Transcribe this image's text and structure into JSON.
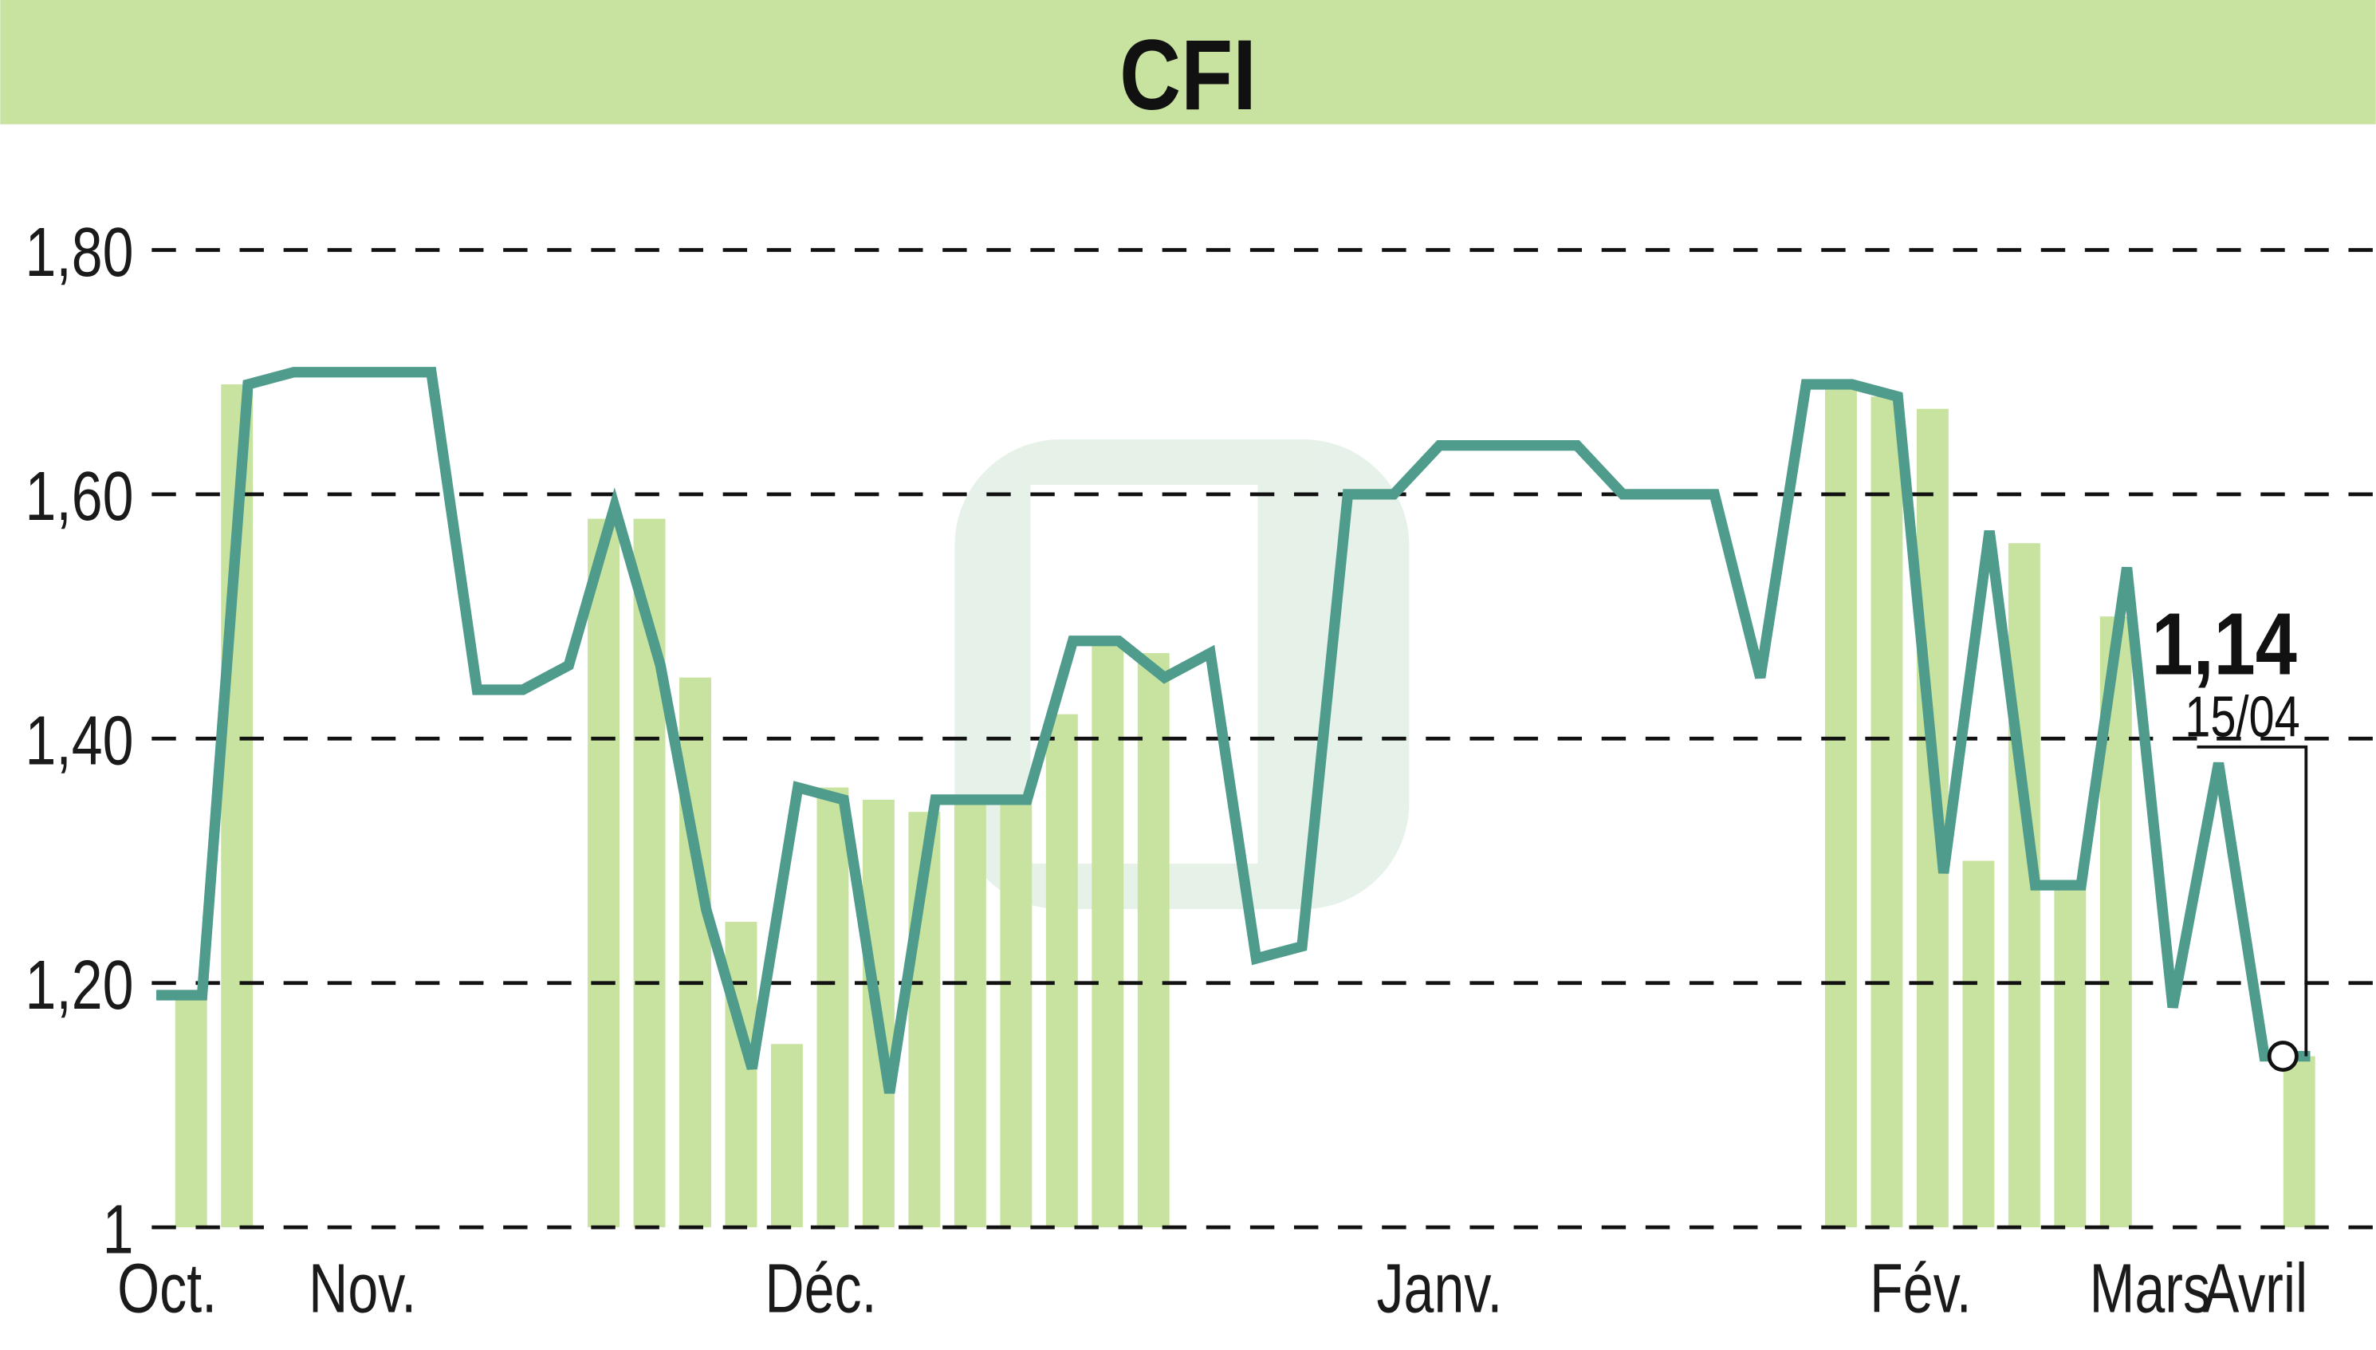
{
  "chart_data": {
    "type": "line",
    "title": "CFI",
    "colors": {
      "header": "#c8e2a0",
      "line": "#4f9c8c",
      "bars": "#c8e2a0",
      "grid": "#111111"
    },
    "ylim": [
      1.0,
      1.8
    ],
    "yticks": [
      {
        "value": 1.0,
        "label": "1"
      },
      {
        "value": 1.2,
        "label": "1,20"
      },
      {
        "value": 1.4,
        "label": "1,40"
      },
      {
        "value": 1.6,
        "label": "1,60"
      },
      {
        "value": 1.8,
        "label": "1,80"
      }
    ],
    "grid": "horizontal dashed",
    "series": [
      {
        "values": [
          1.19,
          1.19,
          1.69,
          1.7,
          1.7,
          1.7,
          1.7,
          1.44,
          1.44,
          1.46,
          1.59,
          1.46,
          1.26,
          1.13,
          1.36,
          1.35,
          1.11,
          1.35,
          1.35,
          1.35,
          1.48,
          1.48,
          1.45,
          1.47,
          1.22,
          1.23,
          1.6,
          1.6,
          1.64,
          1.64,
          1.64,
          1.64,
          1.6,
          1.6,
          1.6,
          1.45,
          1.69,
          1.69,
          1.68,
          1.29,
          1.57,
          1.28,
          1.28,
          1.54,
          1.18,
          1.38,
          1.14,
          1.14
        ]
      }
    ],
    "volume_bars": [
      {
        "index": 0,
        "value": 1.19
      },
      {
        "index": 1,
        "value": 1.69
      },
      {
        "index": 9,
        "value": 1.58
      },
      {
        "index": 10,
        "value": 1.58
      },
      {
        "index": 11,
        "value": 1.45
      },
      {
        "index": 12,
        "value": 1.25
      },
      {
        "index": 13,
        "value": 1.15
      },
      {
        "index": 14,
        "value": 1.36
      },
      {
        "index": 15,
        "value": 1.35
      },
      {
        "index": 16,
        "value": 1.34
      },
      {
        "index": 17,
        "value": 1.35
      },
      {
        "index": 18,
        "value": 1.35
      },
      {
        "index": 19,
        "value": 1.42
      },
      {
        "index": 20,
        "value": 1.48
      },
      {
        "index": 21,
        "value": 1.47
      },
      {
        "index": 36,
        "value": 1.69
      },
      {
        "index": 37,
        "value": 1.68
      },
      {
        "index": 38,
        "value": 1.67
      },
      {
        "index": 39,
        "value": 1.3
      },
      {
        "index": 40,
        "value": 1.56
      },
      {
        "index": 41,
        "value": 1.28
      },
      {
        "index": 42,
        "value": 1.5
      },
      {
        "index": 46,
        "value": 1.14
      }
    ],
    "xticks": [
      {
        "index": 0,
        "label": "Oct."
      },
      {
        "index": 4.5,
        "label": "Nov."
      },
      {
        "index": 14.5,
        "label": "Déc."
      },
      {
        "index": 28,
        "label": "Janv."
      },
      {
        "index": 38.5,
        "label": "Fév."
      },
      {
        "index": 43.5,
        "label": "Mars"
      },
      {
        "index": 45.8,
        "label": "Avril"
      }
    ],
    "last_value": {
      "label": "1,14",
      "date": "15/04"
    }
  }
}
